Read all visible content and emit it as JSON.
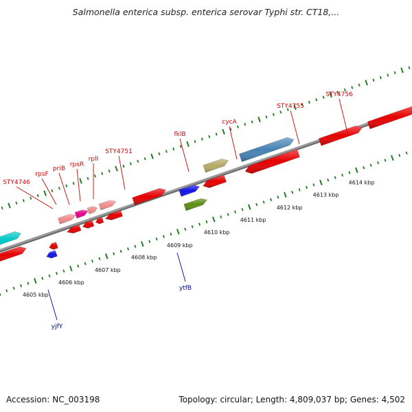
{
  "title": "Salmonella enterica subsp. enterica serovar Typhi str. CT18,...",
  "footer": {
    "accession": "Accession: NC_003198",
    "topology": "Topology: circular; Length: 4,809,037 bp; Genes: 4,502"
  },
  "colors": {
    "backbone": "#8a8a8a",
    "tick": "#1e7a1e",
    "label_top": "#cc0000",
    "label_bottom": "#0000aa"
  },
  "scale_labels": [
    "4605 kbp",
    "4606 kbp",
    "4607 kbp",
    "4608 kbp",
    "4609 kbp",
    "4610 kbp",
    "4611 kbp",
    "4612 kbp",
    "4613 kbp",
    "4614 kbp"
  ],
  "gene_labels": [
    {
      "text": "STY4746",
      "side": "top"
    },
    {
      "text": "rpsF",
      "side": "top"
    },
    {
      "text": "priB",
      "side": "top"
    },
    {
      "text": "rpsR",
      "side": "top"
    },
    {
      "text": "rplI",
      "side": "top"
    },
    {
      "text": "STY4751",
      "side": "top"
    },
    {
      "text": "fklB",
      "side": "top"
    },
    {
      "text": "cycA",
      "side": "top"
    },
    {
      "text": "STY4755",
      "side": "top"
    },
    {
      "text": "STY4756",
      "side": "top"
    },
    {
      "text": "yjfY",
      "side": "bottom"
    },
    {
      "text": "ytfB",
      "side": "bottom"
    }
  ],
  "features": [
    {
      "color": "#00c8c8",
      "strand": "plus"
    },
    {
      "color": "#e60000",
      "strand": "plus"
    },
    {
      "color": "#e60000",
      "strand": "minus"
    },
    {
      "color": "#f08c8c",
      "strand": "plus"
    },
    {
      "color": "#e6008c",
      "strand": "plus"
    },
    {
      "color": "#f08c8c",
      "strand": "plus"
    },
    {
      "color": "#f08c8c",
      "strand": "plus"
    },
    {
      "color": "#e60000",
      "strand": "minus"
    },
    {
      "color": "#e60000",
      "strand": "minus"
    },
    {
      "color": "#e60000",
      "strand": "minus"
    },
    {
      "color": "#e60000",
      "strand": "minus"
    },
    {
      "color": "#1414e6",
      "strand": "minus"
    },
    {
      "color": "#e60000",
      "strand": "plus"
    },
    {
      "color": "#1414e6",
      "strand": "plus"
    },
    {
      "color": "#5a8c14",
      "strand": "plus"
    },
    {
      "color": "#b4aa64",
      "strand": "plus"
    },
    {
      "color": "#e60000",
      "strand": "minus"
    },
    {
      "color": "#4682b4",
      "strand": "plus"
    },
    {
      "color": "#e60000",
      "strand": "minus"
    },
    {
      "color": "#e60000",
      "strand": "plus"
    },
    {
      "color": "#e60000",
      "strand": "plus"
    },
    {
      "color": "#1414e6",
      "strand": "plus"
    },
    {
      "color": "#f0e68c",
      "strand": "plus"
    }
  ]
}
